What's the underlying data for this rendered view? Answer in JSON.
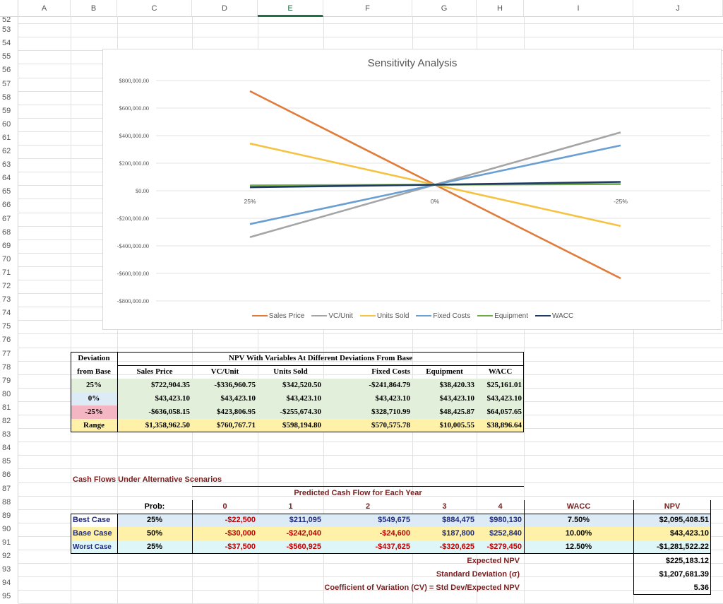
{
  "columns": [
    "A",
    "B",
    "C",
    "D",
    "E",
    "F",
    "G",
    "H",
    "I",
    "J"
  ],
  "rows": [
    "52",
    "53",
    "54",
    "55",
    "56",
    "57",
    "58",
    "59",
    "60",
    "61",
    "62",
    "63",
    "64",
    "65",
    "66",
    "67",
    "68",
    "69",
    "70",
    "71",
    "72",
    "73",
    "74",
    "75",
    "76",
    "77",
    "78",
    "79",
    "80",
    "81",
    "82",
    "83",
    "84",
    "85",
    "86",
    "87",
    "88",
    "89",
    "90",
    "91",
    "92",
    "93",
    "94",
    "95"
  ],
  "colors": {
    "sales_price": "#e07b39",
    "vc_unit": "#a5a5a5",
    "units_sold": "#f5c242",
    "fixed_costs": "#6a9fd4",
    "equipment": "#70ad47",
    "wacc": "#1f3b63",
    "green_fill": "#e2efda",
    "blue_fill": "#ddebf7",
    "pink_fill": "#f4b6c2",
    "yellow_fill": "#fff2a8",
    "cyan_fill": "#def6f8",
    "dark_red": "#7a1f1f",
    "navy": "#1f2a7a"
  },
  "chart_data": {
    "type": "line",
    "title": "Sensitivity Analysis",
    "categories": [
      "25%",
      "0%",
      "-25%"
    ],
    "ylim": [
      -800000,
      800000
    ],
    "y_ticks": [
      "$800,000.00",
      "$600,000.00",
      "$400,000.00",
      "$200,000.00",
      "$0.00",
      "-$200,000.00",
      "-$400,000.00",
      "-$600,000.00",
      "-$800,000.00"
    ],
    "legend_position": "bottom",
    "grid": true,
    "series": [
      {
        "name": "Sales Price",
        "values": [
          722904.35,
          43423.1,
          -636058.15
        ]
      },
      {
        "name": "VC/Unit",
        "values": [
          -336960.75,
          43423.1,
          423806.95
        ]
      },
      {
        "name": "Units Sold",
        "values": [
          342520.5,
          43423.1,
          -255674.3
        ]
      },
      {
        "name": "Fixed Costs",
        "values": [
          -241864.79,
          43423.1,
          328710.99
        ]
      },
      {
        "name": "Equipment",
        "values": [
          38420.33,
          43423.1,
          48425.87
        ]
      },
      {
        "name": "WACC",
        "values": [
          25161.01,
          43423.1,
          64057.65
        ]
      }
    ]
  },
  "npv_table": {
    "header_dev1": "Deviation",
    "header_dev2": "from Base",
    "title": "NPV With Variables At Different Deviations From Base",
    "columns": [
      "Sales Price",
      "VC/Unit",
      "Units Sold",
      "Fixed Costs",
      "Equipment",
      "WACC"
    ],
    "rows": [
      {
        "label": "25%",
        "values": [
          "$722,904.35",
          "-$336,960.75",
          "$342,520.50",
          "-$241,864.79",
          "$38,420.33",
          "$25,161.01"
        ]
      },
      {
        "label": "0%",
        "values": [
          "$43,423.10",
          "$43,423.10",
          "$43,423.10",
          "$43,423.10",
          "$43,423.10",
          "$43,423.10"
        ]
      },
      {
        "label": "-25%",
        "values": [
          "-$636,058.15",
          "$423,806.95",
          "-$255,674.30",
          "$328,710.99",
          "$48,425.87",
          "$64,057.65"
        ]
      },
      {
        "label": "Range",
        "values": [
          "$1,358,962.50",
          "$760,767.71",
          "$598,194.80",
          "$570,575.78",
          "$10,005.55",
          "$38,896.64"
        ]
      }
    ]
  },
  "cash_flows": {
    "title": "Cash Flows Under Alternative Scenarios",
    "predicted_title": "Predicted Cash Flow for Each Year",
    "prob_label": "Prob:",
    "years": [
      "0",
      "1",
      "2",
      "3",
      "4"
    ],
    "wacc_label": "WACC",
    "npv_label": "NPV",
    "scenarios": [
      {
        "name": "Best Case",
        "prob": "25%",
        "flows": [
          "-$22,500",
          "$211,095",
          "$549,675",
          "$884,475",
          "$980,130"
        ],
        "wacc": "7.50%",
        "npv": "$2,095,408.51"
      },
      {
        "name": "Base Case",
        "prob": "50%",
        "flows": [
          "-$30,000",
          "-$242,040",
          "-$24,600",
          "$187,800",
          "$252,840"
        ],
        "wacc": "10.00%",
        "npv": "$43,423.10"
      },
      {
        "name": "Worst Case",
        "prob": "25%",
        "flows": [
          "-$37,500",
          "-$560,925",
          "-$437,625",
          "-$320,625",
          "-$279,450"
        ],
        "wacc": "12.50%",
        "npv": "-$1,281,522.22"
      }
    ],
    "expected_npv_label": "Expected NPV",
    "expected_npv": "$225,183.12",
    "std_dev_label": "Standard Deviation  (σ)",
    "std_dev": "$1,207,681.39",
    "cv_label": "Coefficient of Variation (CV) = Std Dev/Expected NPV",
    "cv": "5.36"
  }
}
